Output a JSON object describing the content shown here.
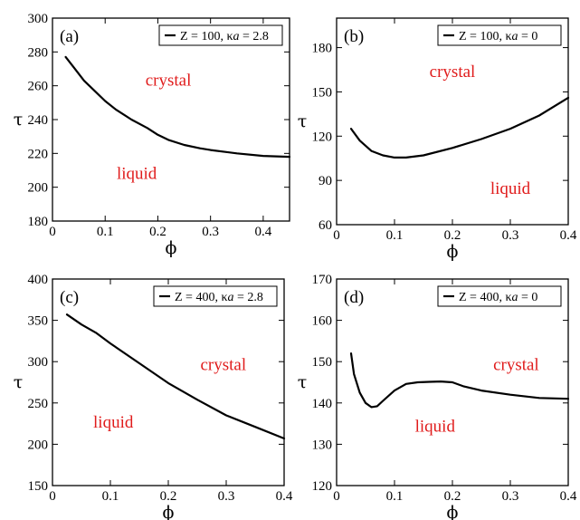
{
  "chart_data": [
    {
      "type": "line",
      "panel_label": "(a)",
      "xlabel": "ϕ",
      "ylabel": "τ",
      "xlim": [
        0,
        0.45
      ],
      "ylim": [
        180,
        300
      ],
      "xticks": [
        0,
        0.1,
        0.2,
        0.3,
        0.4
      ],
      "xtick_labels": [
        "0",
        "0.1",
        "0.2",
        "0.3",
        "0.4"
      ],
      "yticks": [
        180,
        200,
        220,
        240,
        260,
        280,
        300
      ],
      "ytick_labels": [
        "180",
        "200",
        "220",
        "240",
        "260",
        "280",
        "300"
      ],
      "legend_placement": "top-right",
      "legend": {
        "prefix": "Z = 100, κ",
        "italic": "a",
        "suffix": " = 2.8"
      },
      "region_labels": [
        {
          "text": "crystal",
          "x": 0.22,
          "y": 260
        },
        {
          "text": "liquid",
          "x": 0.16,
          "y": 205
        }
      ],
      "series": [
        {
          "x": [
            0.025,
            0.04,
            0.06,
            0.08,
            0.1,
            0.12,
            0.15,
            0.18,
            0.2,
            0.22,
            0.25,
            0.28,
            0.3,
            0.35,
            0.4,
            0.45
          ],
          "y": [
            277,
            271,
            263,
            257,
            251,
            246,
            240,
            235,
            231,
            228,
            225,
            223,
            222,
            220,
            218.5,
            218
          ]
        }
      ]
    },
    {
      "type": "line",
      "panel_label": "(b)",
      "xlabel": "ϕ",
      "ylabel": "τ",
      "xlim": [
        0,
        0.4
      ],
      "ylim": [
        60,
        200
      ],
      "xticks": [
        0,
        0.1,
        0.2,
        0.3,
        0.4
      ],
      "xtick_labels": [
        "0",
        "0.1",
        "0.2",
        "0.3",
        "0.4"
      ],
      "yticks": [
        60,
        90,
        120,
        150,
        180
      ],
      "ytick_labels": [
        "60",
        "90",
        "120",
        "150",
        "180"
      ],
      "legend_placement": "top-right",
      "legend": {
        "prefix": "Z = 100, κ",
        "italic": "a",
        "suffix": " = 0"
      },
      "region_labels": [
        {
          "text": "crystal",
          "x": 0.2,
          "y": 160
        },
        {
          "text": "liquid",
          "x": 0.3,
          "y": 81
        }
      ],
      "series": [
        {
          "x": [
            0.025,
            0.04,
            0.06,
            0.08,
            0.1,
            0.12,
            0.15,
            0.2,
            0.25,
            0.3,
            0.35,
            0.4
          ],
          "y": [
            125,
            117,
            110,
            107,
            105.5,
            105.5,
            107,
            112,
            118,
            125,
            134,
            146
          ]
        }
      ]
    },
    {
      "type": "line",
      "panel_label": "(c)",
      "xlabel": "ϕ",
      "ylabel": "τ",
      "xlim": [
        0,
        0.4
      ],
      "ylim": [
        150,
        400
      ],
      "xticks": [
        0,
        0.1,
        0.2,
        0.3,
        0.4
      ],
      "xtick_labels": [
        "0",
        "0.1",
        "0.2",
        "0.3",
        "0.4"
      ],
      "yticks": [
        150,
        200,
        250,
        300,
        350,
        400
      ],
      "ytick_labels": [
        "150",
        "200",
        "250",
        "300",
        "350",
        "400"
      ],
      "legend_placement": "top-right",
      "legend": {
        "prefix": "Z = 400, κ",
        "italic": "a",
        "suffix": " = 2.8"
      },
      "region_labels": [
        {
          "text": "crystal",
          "x": 0.295,
          "y": 290
        },
        {
          "text": "liquid",
          "x": 0.105,
          "y": 220
        }
      ],
      "series": [
        {
          "x": [
            0.025,
            0.05,
            0.075,
            0.1,
            0.15,
            0.2,
            0.25,
            0.3,
            0.35,
            0.4
          ],
          "y": [
            357,
            345,
            335,
            322,
            298,
            274,
            254,
            235,
            221,
            207
          ]
        }
      ]
    },
    {
      "type": "line",
      "panel_label": "(d)",
      "xlabel": "ϕ",
      "ylabel": "τ",
      "xlim": [
        0,
        0.4
      ],
      "ylim": [
        120,
        170
      ],
      "xticks": [
        0,
        0.1,
        0.2,
        0.3,
        0.4
      ],
      "xtick_labels": [
        "0",
        "0.1",
        "0.2",
        "0.3",
        "0.4"
      ],
      "yticks": [
        120,
        130,
        140,
        150,
        160,
        170
      ],
      "ytick_labels": [
        "120",
        "130",
        "140",
        "150",
        "160",
        "170"
      ],
      "legend_placement": "top-right",
      "legend": {
        "prefix": "Z = 400, κ",
        "italic": "a",
        "suffix": " = 0"
      },
      "region_labels": [
        {
          "text": "crystal",
          "x": 0.31,
          "y": 148
        },
        {
          "text": "liquid",
          "x": 0.17,
          "y": 133
        }
      ],
      "series": [
        {
          "x": [
            0.025,
            0.03,
            0.04,
            0.05,
            0.06,
            0.07,
            0.08,
            0.1,
            0.12,
            0.14,
            0.16,
            0.18,
            0.2,
            0.22,
            0.25,
            0.3,
            0.35,
            0.4
          ],
          "y": [
            152,
            147,
            142.5,
            140,
            139,
            139.2,
            140.5,
            143,
            144.6,
            145,
            145.1,
            145.2,
            145,
            144,
            143,
            142,
            141.2,
            141
          ]
        }
      ]
    }
  ]
}
